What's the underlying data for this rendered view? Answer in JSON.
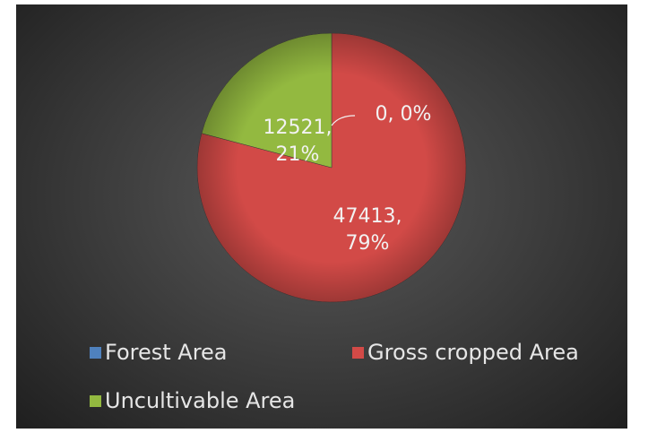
{
  "chart_data": {
    "type": "pie",
    "categories": [
      "Forest Area",
      "Gross cropped Area",
      "Uncultivable Area"
    ],
    "values": [
      0,
      47413,
      12521
    ],
    "value_labels": [
      "0, 0%",
      "47413, 79%",
      "12521, 21%"
    ],
    "colors": [
      "#4f81bd",
      "#d24a47",
      "#93b940"
    ],
    "legend": "bottom"
  }
}
